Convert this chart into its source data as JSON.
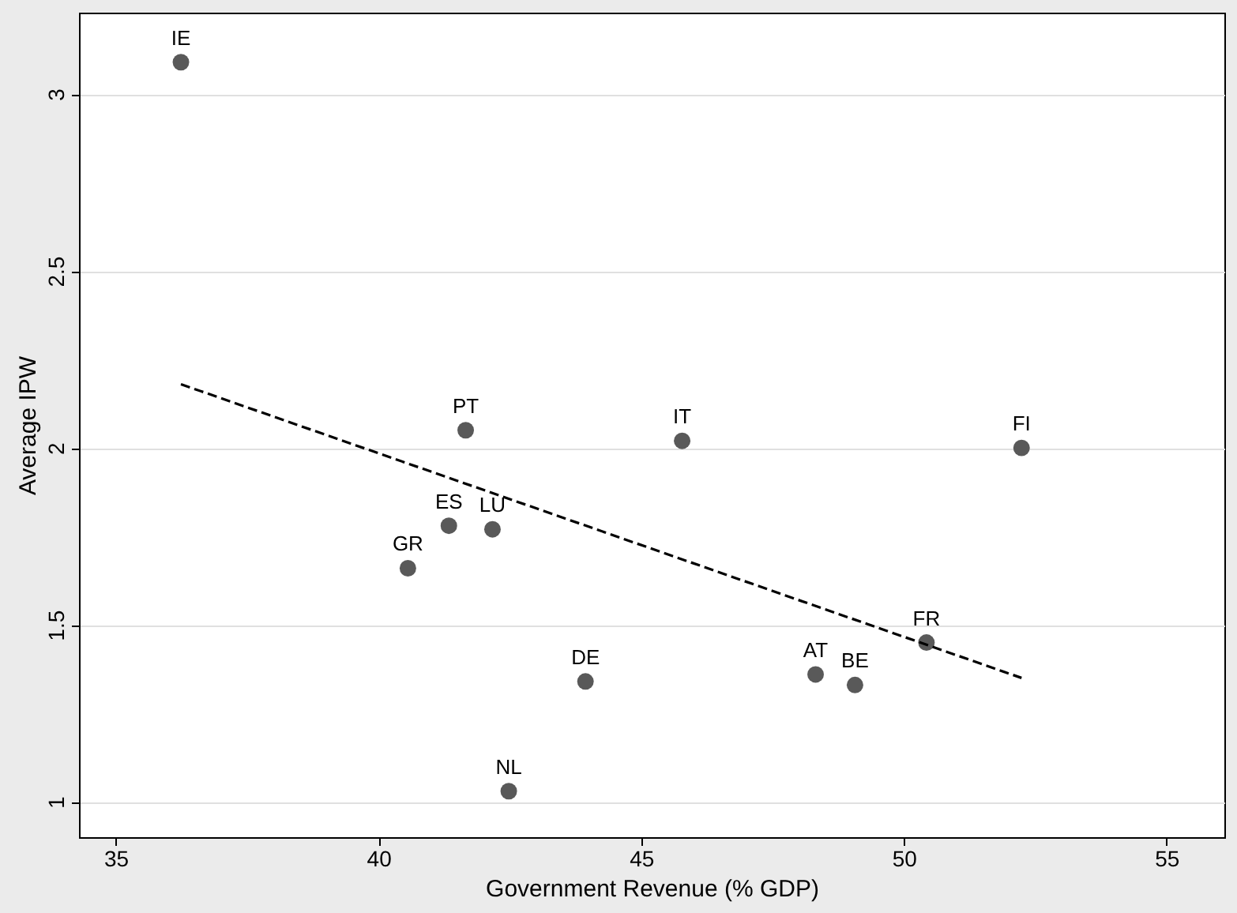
{
  "chart_data": {
    "type": "scatter",
    "xlabel": "Government Revenue (% GDP)",
    "ylabel": "Average IPW",
    "xlim": [
      34.3,
      56.1
    ],
    "ylim": [
      0.9,
      3.23
    ],
    "xticks": [
      35,
      40,
      45,
      50,
      55
    ],
    "yticks": [
      1,
      1.5,
      2,
      2.5,
      3
    ],
    "grid": "y",
    "series": [
      {
        "type": "scatter",
        "marker": "circle",
        "color": "#595959",
        "x": [
          36.24,
          41.66,
          45.78,
          52.24,
          41.34,
          42.17,
          40.56,
          43.94,
          42.48,
          48.32,
          49.07,
          50.43
        ],
        "values": [
          3.09,
          2.05,
          2.02,
          2.0,
          1.78,
          1.77,
          1.66,
          1.34,
          1.03,
          1.36,
          1.33,
          1.45
        ]
      },
      {
        "type": "line",
        "color": "#000000",
        "line_style": "dashed",
        "x": [
          36.24,
          52.24
        ],
        "values": [
          2.18,
          1.35
        ]
      }
    ],
    "annotations": [
      {
        "text": "IE",
        "x": 36.24,
        "y": 3.09
      },
      {
        "text": "PT",
        "x": 41.66,
        "y": 2.05
      },
      {
        "text": "IT",
        "x": 45.78,
        "y": 2.02
      },
      {
        "text": "FI",
        "x": 52.24,
        "y": 2.0
      },
      {
        "text": "ES",
        "x": 41.34,
        "y": 1.78
      },
      {
        "text": "LU",
        "x": 42.17,
        "y": 1.77
      },
      {
        "text": "GR",
        "x": 40.56,
        "y": 1.66
      },
      {
        "text": "DE",
        "x": 43.94,
        "y": 1.34
      },
      {
        "text": "NL",
        "x": 42.48,
        "y": 1.03
      },
      {
        "text": "AT",
        "x": 48.32,
        "y": 1.36
      },
      {
        "text": "BE",
        "x": 49.07,
        "y": 1.33
      },
      {
        "text": "FR",
        "x": 50.43,
        "y": 1.45
      }
    ]
  }
}
